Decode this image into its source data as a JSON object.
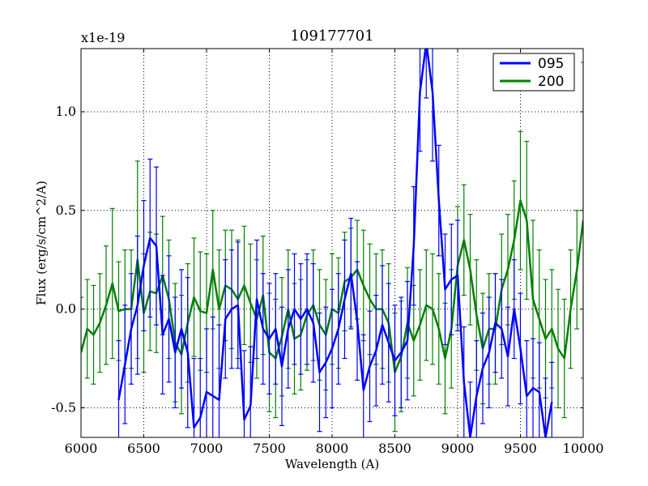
{
  "chart_data": {
    "type": "line",
    "title": "109177701",
    "xlabel": "Wavelength (A)",
    "ylabel": "Flux (erg/s/cm^2/A)",
    "offset_label": "x1e-19",
    "xlim": [
      6000,
      10000
    ],
    "ylim": [
      -0.65,
      1.32
    ],
    "xticks": [
      6000,
      6500,
      7000,
      7500,
      8000,
      8500,
      9000,
      9500,
      10000
    ],
    "xtick_labels": [
      "6000",
      "6500",
      "7000",
      "7500",
      "8000",
      "8500",
      "9000",
      "9500",
      "10000"
    ],
    "yticks": [
      -0.5,
      0.0,
      0.5,
      1.0
    ],
    "ytick_labels": [
      "-0.5",
      "0.0",
      "0.5",
      "1.0"
    ],
    "grid": true,
    "legend": "top-right",
    "series": [
      {
        "name": "095",
        "color": "#0000ff",
        "x": [
          6300,
          6350,
          6400,
          6450,
          6500,
          6550,
          6600,
          6650,
          6700,
          6750,
          6800,
          6850,
          6900,
          6950,
          7000,
          7050,
          7100,
          7150,
          7200,
          7250,
          7300,
          7350,
          7400,
          7450,
          7500,
          7550,
          7600,
          7650,
          7700,
          7750,
          7800,
          7850,
          7900,
          7950,
          8000,
          8050,
          8100,
          8150,
          8200,
          8250,
          8300,
          8350,
          8400,
          8450,
          8500,
          8550,
          8600,
          8650,
          8700,
          8750,
          8800,
          8850,
          8900,
          8950,
          9000,
          9050,
          9100,
          9150,
          9200,
          9250,
          9300,
          9350,
          9400,
          9450,
          9500,
          9550,
          9600,
          9650,
          9700,
          9750
        ],
        "y": [
          -0.46,
          -0.28,
          -0.1,
          0.02,
          0.22,
          0.36,
          0.32,
          -0.13,
          -0.05,
          -0.22,
          -0.1,
          -0.22,
          -0.6,
          -0.55,
          -0.42,
          -0.44,
          -0.46,
          -0.05,
          0.0,
          0.02,
          -0.56,
          -0.49,
          0.05,
          -0.1,
          -0.15,
          -0.1,
          -0.29,
          -0.1,
          0.0,
          -0.05,
          0.0,
          -0.07,
          -0.32,
          -0.27,
          -0.2,
          -0.1,
          0.05,
          0.18,
          -0.06,
          -0.41,
          -0.29,
          -0.21,
          -0.08,
          -0.17,
          -0.26,
          -0.22,
          -0.16,
          0.32,
          1.1,
          1.35,
          1.1,
          0.55,
          0.1,
          0.15,
          0.17,
          -0.37,
          -0.65,
          -0.44,
          -0.3,
          -0.22,
          -0.07,
          -0.1,
          -0.24,
          0.0,
          -0.2,
          -0.44,
          -0.4,
          -0.42,
          -0.65,
          -0.47
        ],
        "yerr": [
          0.3,
          0.3,
          0.28,
          0.35,
          0.33,
          0.4,
          0.4,
          0.3,
          0.32,
          0.28,
          0.3,
          0.38,
          0.35,
          0.3,
          0.32,
          0.4,
          0.38,
          0.3,
          0.3,
          0.32,
          0.35,
          0.3,
          0.3,
          0.28,
          0.28,
          0.28,
          0.3,
          0.3,
          0.28,
          0.28,
          0.28,
          0.3,
          0.3,
          0.28,
          0.3,
          0.28,
          0.3,
          0.28,
          0.3,
          0.28,
          0.28,
          0.28,
          0.3,
          0.3,
          0.28,
          0.28,
          0.3,
          0.3,
          0.3,
          0.28,
          0.35,
          0.28,
          0.28,
          0.28,
          0.28,
          0.28,
          0.28,
          0.28,
          0.28,
          0.28,
          0.25,
          0.25,
          0.25,
          0.25,
          0.28,
          0.28,
          0.25,
          0.25,
          0.3,
          0.2
        ]
      },
      {
        "name": "200",
        "color": "#008000",
        "x": [
          6000,
          6050,
          6100,
          6150,
          6200,
          6250,
          6300,
          6350,
          6400,
          6450,
          6500,
          6550,
          6600,
          6650,
          6700,
          6750,
          6800,
          6850,
          6900,
          6950,
          7000,
          7050,
          7100,
          7150,
          7200,
          7250,
          7300,
          7350,
          7400,
          7450,
          7500,
          7550,
          7600,
          7650,
          7700,
          7750,
          7800,
          7850,
          7900,
          7950,
          8000,
          8050,
          8100,
          8150,
          8200,
          8250,
          8300,
          8350,
          8400,
          8450,
          8500,
          8550,
          8600,
          8650,
          8700,
          8750,
          8800,
          8850,
          8900,
          8950,
          9000,
          9050,
          9100,
          9150,
          9200,
          9250,
          9300,
          9350,
          9400,
          9450,
          9500,
          9550,
          9600,
          9650,
          9700,
          9750,
          9800,
          9850,
          9900,
          9950,
          10000
        ],
        "y": [
          -0.22,
          -0.1,
          -0.13,
          -0.07,
          0.02,
          0.13,
          -0.01,
          0.0,
          0.0,
          0.25,
          -0.02,
          0.09,
          0.08,
          0.17,
          0.05,
          -0.17,
          -0.23,
          -0.07,
          0.06,
          -0.01,
          -0.02,
          0.2,
          0.0,
          0.12,
          0.1,
          0.05,
          0.12,
          0.03,
          -0.05,
          0.07,
          -0.22,
          -0.25,
          -0.14,
          0.0,
          -0.15,
          -0.13,
          -0.03,
          0.02,
          -0.08,
          -0.13,
          0.0,
          -0.02,
          0.14,
          0.16,
          0.2,
          0.12,
          0.05,
          0.0,
          0.0,
          -0.07,
          -0.32,
          -0.24,
          -0.07,
          -0.16,
          -0.08,
          0.02,
          0.0,
          -0.1,
          -0.25,
          -0.1,
          0.22,
          0.35,
          0.2,
          -0.03,
          -0.2,
          -0.1,
          -0.1,
          0.1,
          0.2,
          0.35,
          0.55,
          0.45,
          0.05,
          -0.05,
          -0.15,
          -0.1,
          -0.2,
          -0.25,
          0.0,
          0.2,
          0.45
        ],
        "yerr": [
          0.28,
          0.25,
          0.25,
          0.25,
          0.3,
          0.38,
          0.25,
          0.3,
          0.3,
          0.5,
          0.3,
          0.3,
          0.3,
          0.3,
          0.3,
          0.3,
          0.3,
          0.3,
          0.3,
          0.3,
          0.3,
          0.3,
          0.3,
          0.28,
          0.3,
          0.3,
          0.3,
          0.3,
          0.3,
          0.3,
          0.3,
          0.3,
          0.3,
          0.3,
          0.28,
          0.28,
          0.28,
          0.28,
          0.28,
          0.28,
          0.28,
          0.28,
          0.25,
          0.25,
          0.25,
          0.28,
          0.28,
          0.28,
          0.3,
          0.3,
          0.3,
          0.28,
          0.28,
          0.28,
          0.28,
          0.28,
          0.28,
          0.28,
          0.28,
          0.3,
          0.3,
          0.28,
          0.28,
          0.28,
          0.28,
          0.28,
          0.28,
          0.28,
          0.28,
          0.3,
          0.35,
          0.4,
          0.4,
          0.35,
          0.3,
          0.3,
          0.3,
          0.3,
          0.3,
          0.3,
          0.8
        ]
      }
    ]
  }
}
